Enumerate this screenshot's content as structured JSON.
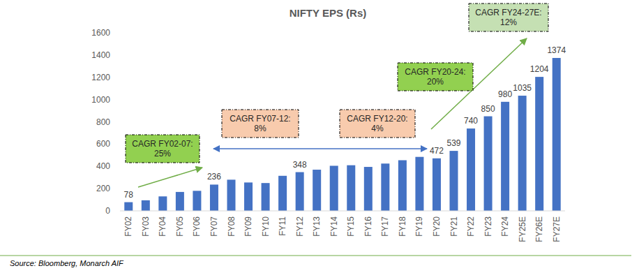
{
  "chart_data": {
    "type": "bar",
    "title": "NIFTY EPS (Rs)",
    "categories": [
      "FY02",
      "FY03",
      "FY04",
      "FY05",
      "FY06",
      "FY07",
      "FY08",
      "FY09",
      "FY10",
      "FY11",
      "FY12",
      "FY13",
      "FY14",
      "FY15",
      "FY16",
      "FY17",
      "FY18",
      "FY19",
      "FY20",
      "FY21",
      "FY22",
      "FY23",
      "FY24",
      "FY25E",
      "FY26E",
      "FY27E"
    ],
    "values": [
      78,
      95,
      130,
      170,
      180,
      236,
      280,
      255,
      250,
      315,
      348,
      370,
      405,
      410,
      395,
      425,
      455,
      485,
      472,
      539,
      740,
      850,
      980,
      1035,
      1204,
      1374
    ],
    "value_labels": [
      "78",
      null,
      null,
      null,
      null,
      "236",
      null,
      null,
      null,
      null,
      "348",
      null,
      null,
      null,
      null,
      null,
      null,
      null,
      "472",
      "539",
      "740",
      "850",
      "980",
      "1035",
      "1204",
      "1374"
    ],
    "color": "#4472c4",
    "ylim": [
      0,
      1600
    ],
    "yticks": [
      0,
      200,
      400,
      600,
      800,
      1000,
      1200,
      1400,
      1600
    ],
    "grid": false,
    "annotations": [
      {
        "text": [
          "CAGR FY02-07:",
          "25%"
        ],
        "color": "#92d050"
      },
      {
        "text": [
          "CAGR FY07-12:",
          "8%"
        ],
        "color": "#f8cbad"
      },
      {
        "text": [
          "CAGR FY12-20:",
          "4%"
        ],
        "color": "#f8cbad"
      },
      {
        "text": [
          "CAGR FY20-24:",
          "20%"
        ],
        "color": "#92d050"
      },
      {
        "text": [
          "CAGR FY24-27E:",
          "12%"
        ],
        "color": "#c5e0b3"
      }
    ],
    "source": "Source: Bloomberg, Monarch AIF"
  }
}
